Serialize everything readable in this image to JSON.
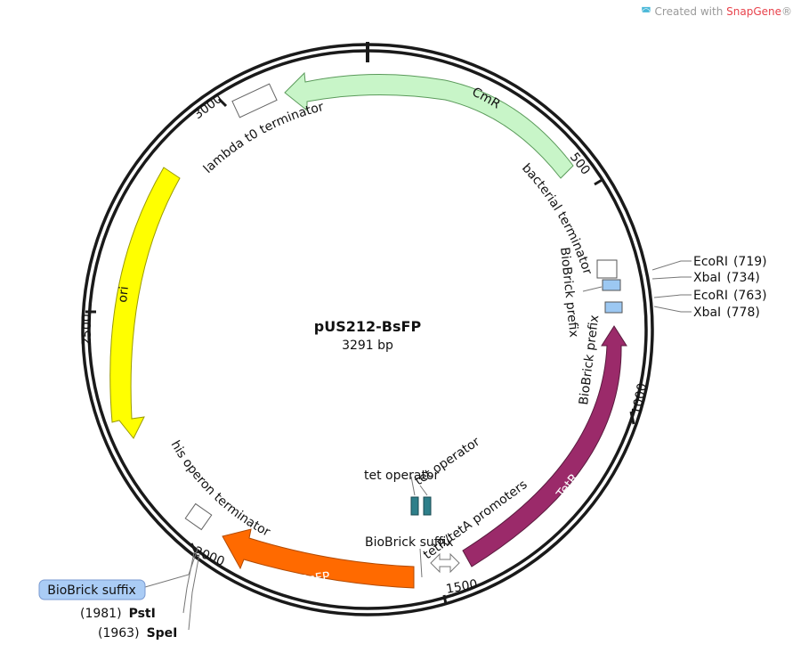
{
  "watermark": {
    "prefix": "Created with ",
    "brand": "SnapGene",
    "mark": "®"
  },
  "plasmid": {
    "name": "pUS212-BsFP",
    "size_label": "3291 bp"
  },
  "ticks": [
    "500",
    "1000",
    "1500",
    "2000",
    "2500",
    "3000"
  ],
  "features": [
    {
      "name": "CmR",
      "kind": "arrow",
      "color": "#c8f5c8"
    },
    {
      "name": "TetR",
      "kind": "arrow",
      "color": "#9b2a6a"
    },
    {
      "name": "BsFP",
      "kind": "arrow",
      "color": "#ff6a00"
    },
    {
      "name": "ori",
      "kind": "arrow",
      "color": "#ffff00"
    },
    {
      "name": "tetR/tetA promoters",
      "kind": "promoter"
    },
    {
      "name": "lambda t0 terminator",
      "kind": "terminator"
    },
    {
      "name": "bacterial terminator",
      "kind": "terminator"
    },
    {
      "name": "his operon terminator",
      "kind": "terminator"
    },
    {
      "name": "BioBrick prefix",
      "kind": "misc"
    },
    {
      "name": "BioBrick prefix",
      "kind": "misc"
    },
    {
      "name": "BioBrick suffix",
      "kind": "misc"
    },
    {
      "name": "tet operator",
      "kind": "operator",
      "color": "#2e7f8a"
    },
    {
      "name": "tet operator",
      "kind": "operator",
      "color": "#2e7f8a"
    }
  ],
  "sites": [
    {
      "name": "EcoRI",
      "pos": "(719)"
    },
    {
      "name": "XbaI",
      "pos": "(734)"
    },
    {
      "name": "EcoRI",
      "pos": "(763)"
    },
    {
      "name": "XbaI",
      "pos": "(778)"
    },
    {
      "name": "PstI",
      "pos": "(1981)"
    },
    {
      "name": "SpeI",
      "pos": "(1963)"
    }
  ],
  "outside_feature": {
    "name": "BioBrick suffix",
    "color": "#aaccf5"
  },
  "colors": {
    "backbone": "#1a1a1a",
    "biobrick": "#9cc8f2"
  }
}
